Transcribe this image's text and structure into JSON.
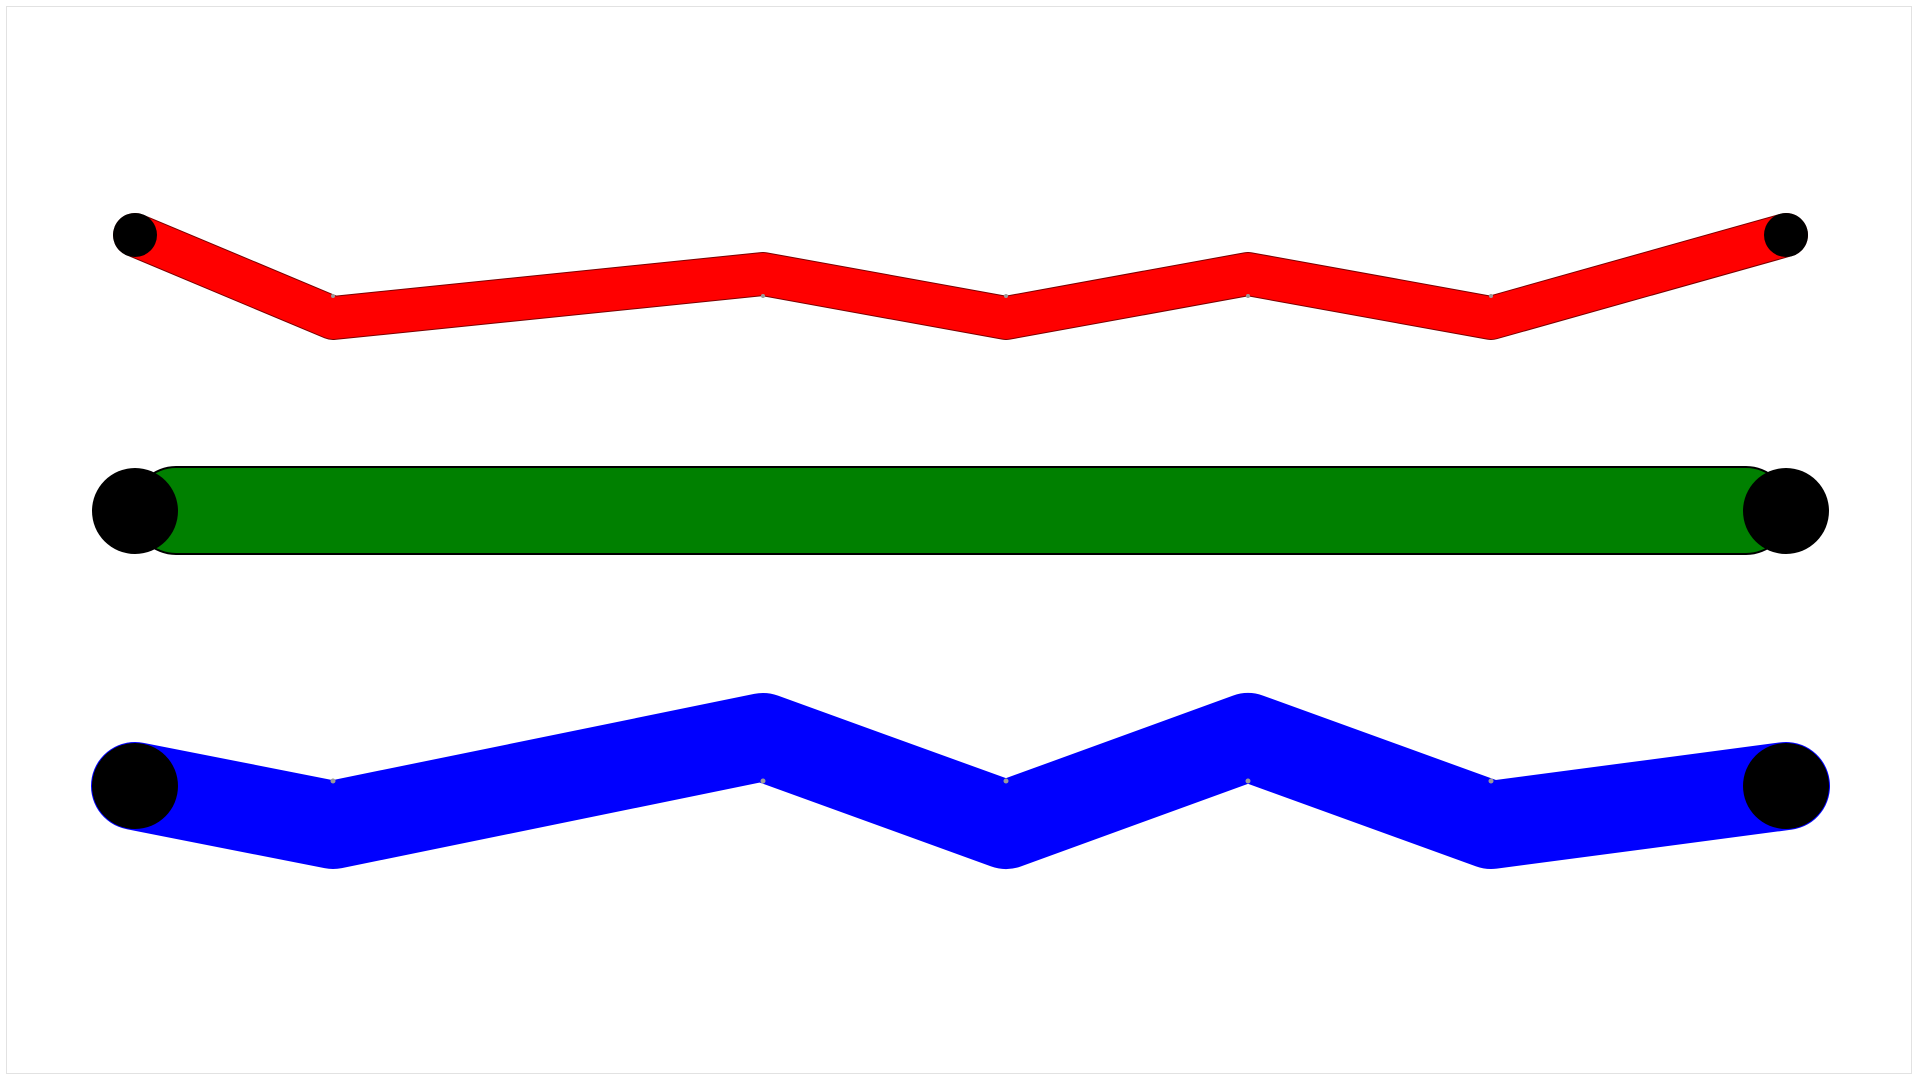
{
  "strokes": [
    {
      "name": "red-stroke",
      "color": "#ff0000",
      "vertex_count": 7,
      "cap": "round-black",
      "relative_weight": 1
    },
    {
      "name": "green-stroke",
      "color": "#008000",
      "vertex_count": 2,
      "cap": "round-black",
      "relative_weight": 2
    },
    {
      "name": "blue-stroke",
      "color": "#0000ff",
      "vertex_count": 7,
      "cap": "round-black",
      "relative_weight": 2
    }
  ],
  "colors": {
    "cap": "#000000",
    "outline": "#000000",
    "vertex-dot": "#9a9a9a",
    "frame": "#e2e2e2",
    "background": "#ffffff"
  }
}
